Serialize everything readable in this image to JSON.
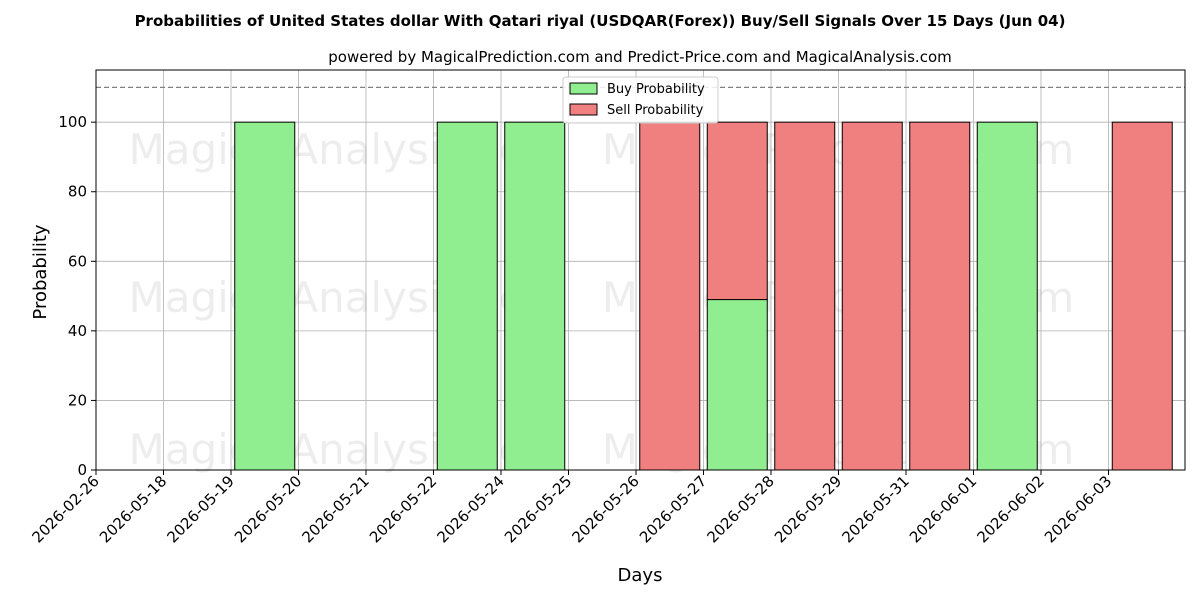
{
  "chart_data": {
    "type": "bar",
    "stacked": true,
    "title": "Probabilities of United States dollar With Qatari riyal (USDQAR(Forex)) Buy/Sell Signals Over 15 Days (Jun 04)",
    "subtitle": "powered by MagicalPrediction.com and Predict-Price.com and MagicalAnalysis.com",
    "xlabel": "Days",
    "ylabel": "Probability",
    "ylim": [
      0,
      115
    ],
    "yticks": [
      0,
      20,
      40,
      60,
      80,
      100
    ],
    "reference_line": 110,
    "grid": true,
    "legend_position": "top-center",
    "categories": [
      "2026-02-26",
      "2026-05-18",
      "2026-05-19",
      "2026-05-20",
      "2026-05-21",
      "2026-05-22",
      "2026-05-24",
      "2026-05-25",
      "2026-05-26",
      "2026-05-27",
      "2026-05-28",
      "2026-05-29",
      "2026-05-31",
      "2026-06-01",
      "2026-06-02",
      "2026-06-03"
    ],
    "series": [
      {
        "name": "Buy Probability",
        "color": "#90ee90",
        "values": [
          0,
          0,
          100,
          0,
          0,
          100,
          100,
          0,
          0,
          49,
          0,
          0,
          0,
          100,
          0,
          0
        ]
      },
      {
        "name": "Sell Probability",
        "color": "#f08080",
        "values": [
          0,
          0,
          0,
          0,
          0,
          0,
          0,
          0,
          100,
          51,
          100,
          100,
          100,
          0,
          0,
          100
        ]
      }
    ],
    "watermarks": [
      "MagicalAnalysis.com",
      "MagicalPrediction.com"
    ]
  }
}
